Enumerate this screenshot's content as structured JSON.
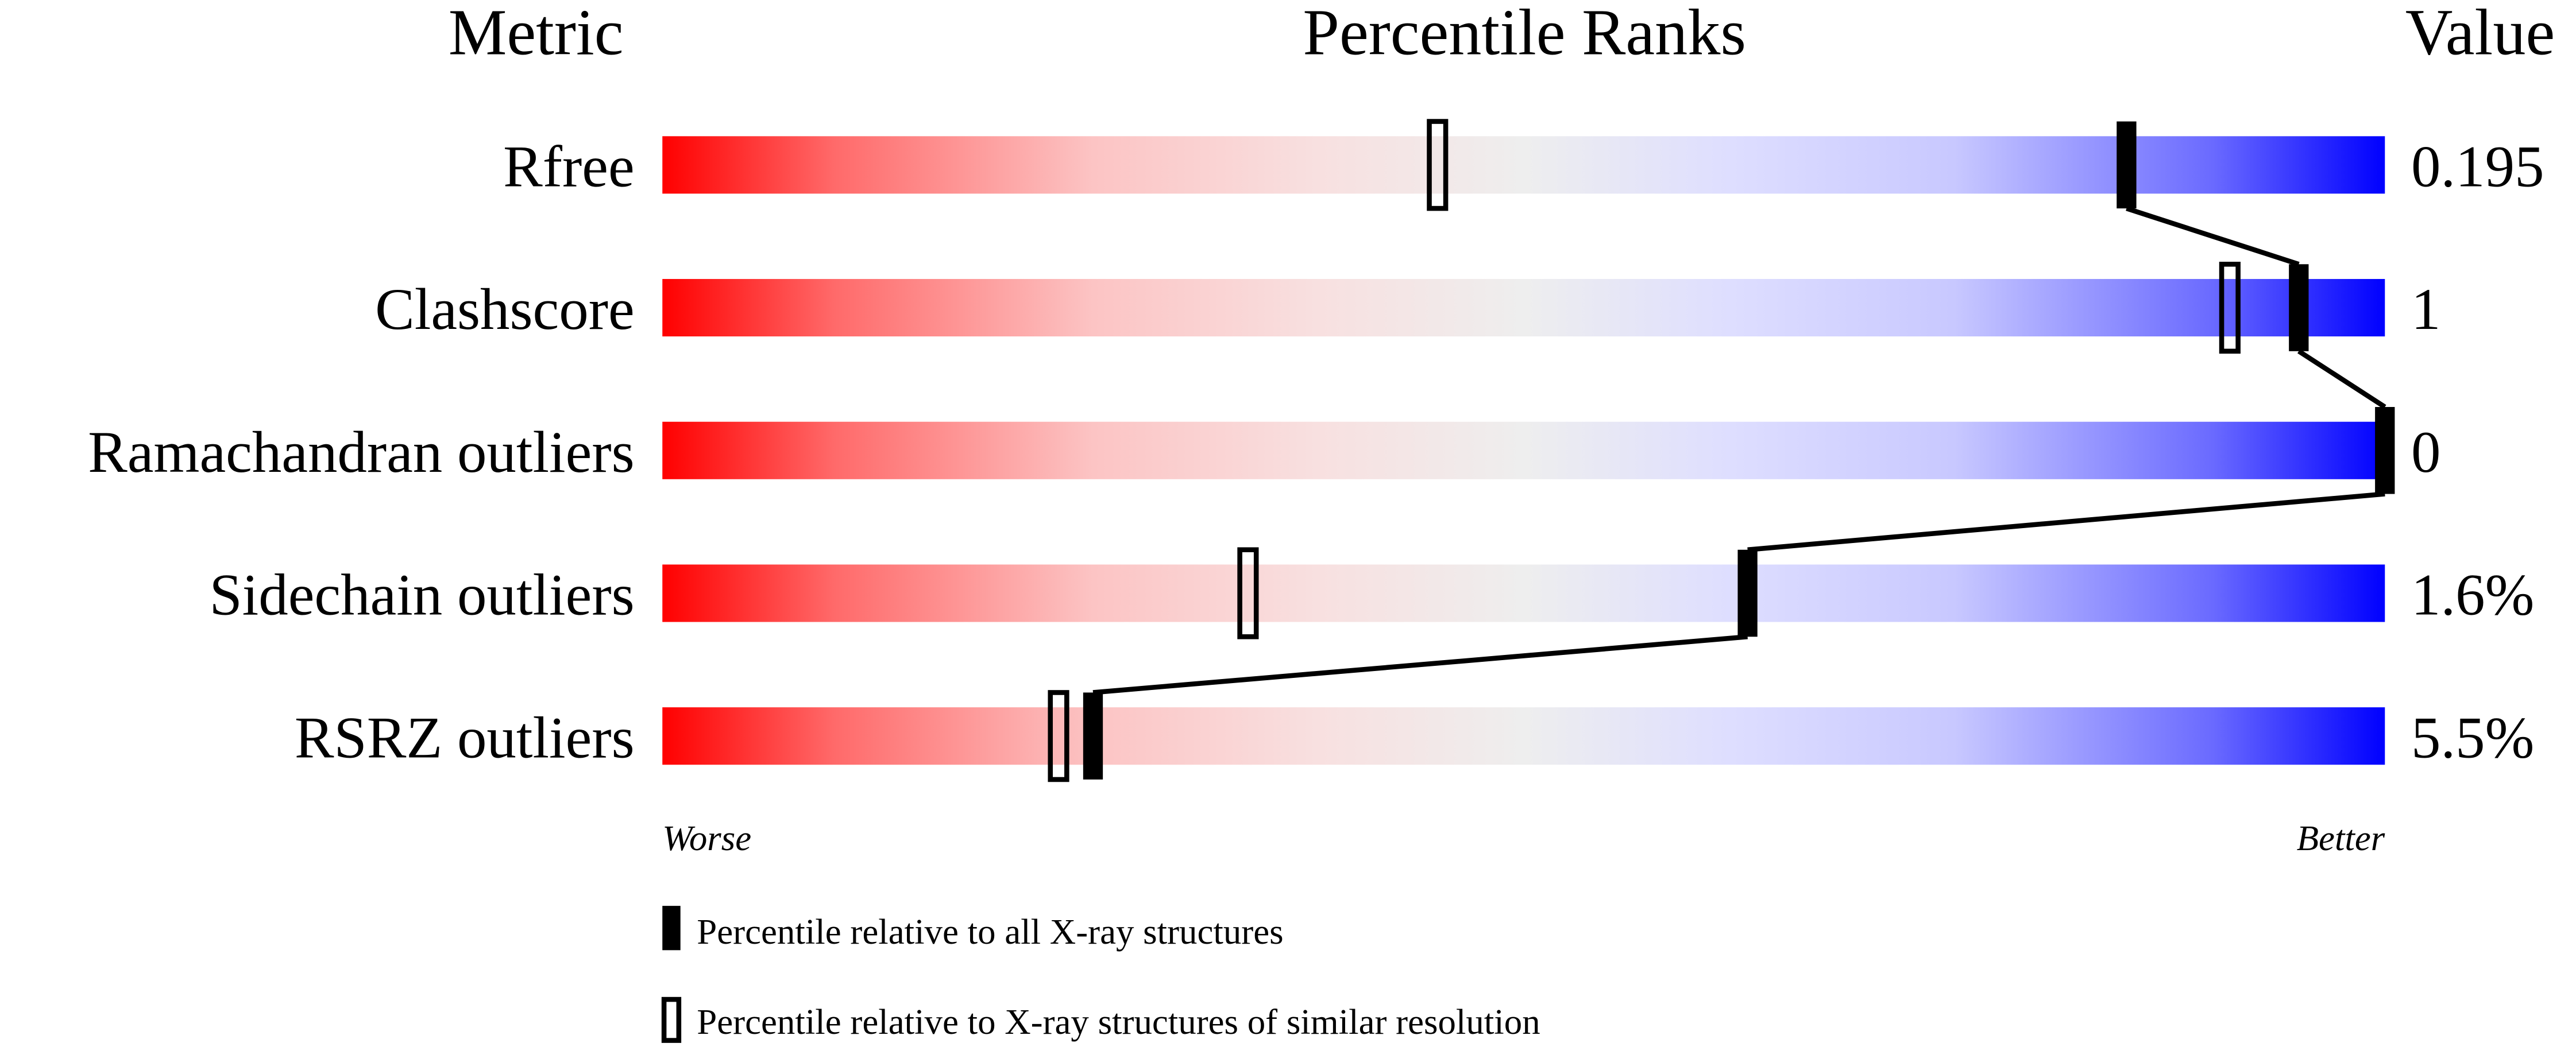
{
  "chart_data": {
    "type": "bar",
    "headers": {
      "metric": "Metric",
      "ranks": "Percentile Ranks",
      "value": "Value"
    },
    "xlim": [
      0,
      100
    ],
    "metrics": [
      {
        "name": "Rfree",
        "value": "0.195",
        "percentile_all": 85,
        "percentile_similar": 45
      },
      {
        "name": "Clashscore",
        "value": "1",
        "percentile_all": 95,
        "percentile_similar": 91
      },
      {
        "name": "Ramachandran outliers",
        "value": "0",
        "percentile_all": 100,
        "percentile_similar": null
      },
      {
        "name": "Sidechain outliers",
        "value": "1.6%",
        "percentile_all": 63,
        "percentile_similar": 34
      },
      {
        "name": "RSRZ outliers",
        "value": "5.5%",
        "percentile_all": 25,
        "percentile_similar": 23
      }
    ],
    "axis_labels": {
      "left": "Worse",
      "right": "Better"
    },
    "legend": {
      "filled": "Percentile relative to all X-ray structures",
      "open": "Percentile relative to X-ray structures of similar resolution"
    },
    "colors": {
      "worse": "#ff0000",
      "middle": "#eeeeee",
      "better": "#0000ff",
      "marker": "#000000"
    }
  }
}
